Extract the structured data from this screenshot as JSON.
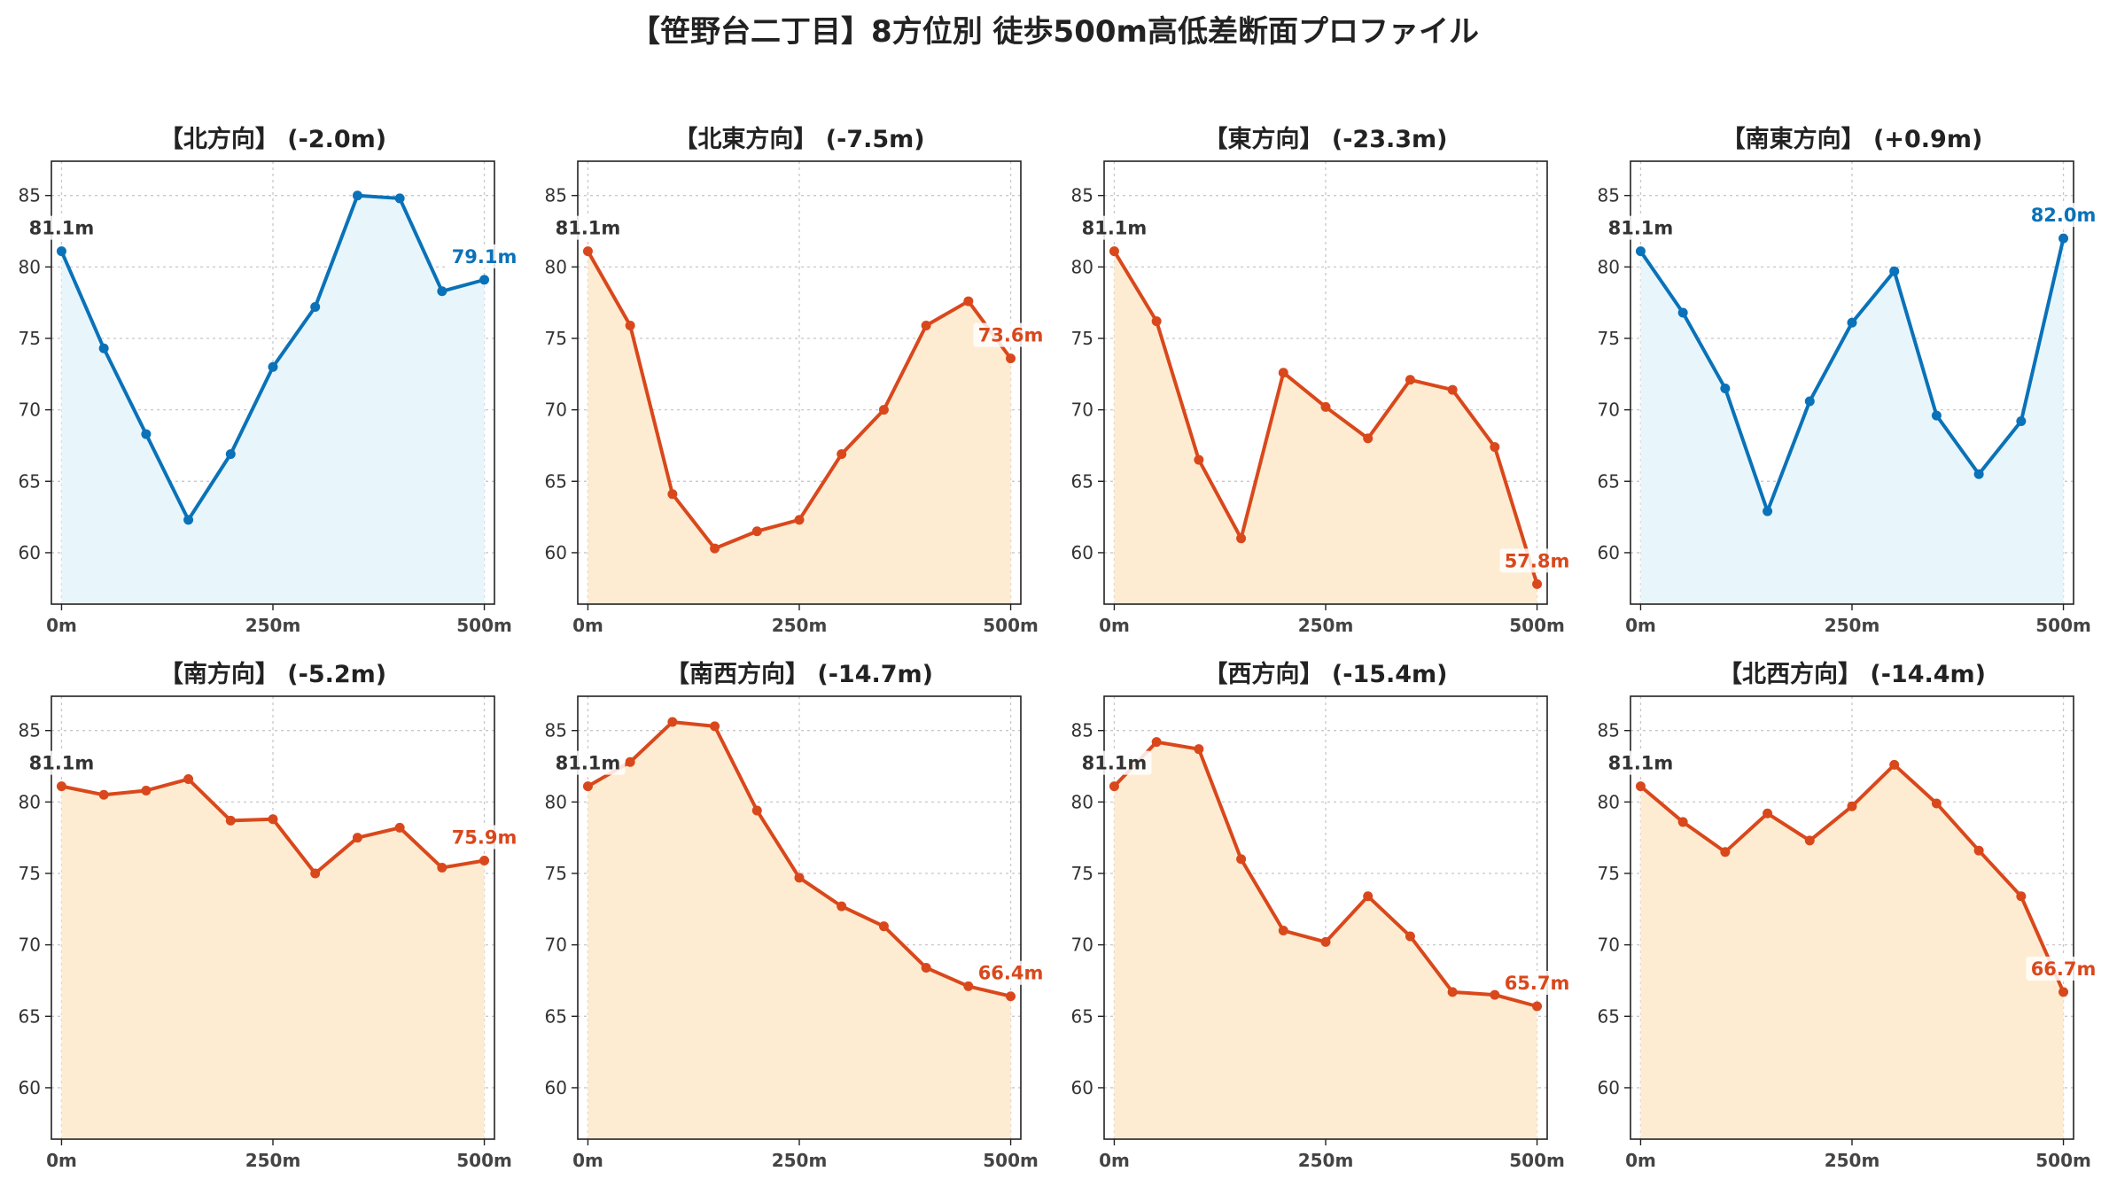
{
  "title": "【笹野台二丁目】8方位別 徒歩500m高低差断面プロファイル",
  "colors": {
    "up": "#0a72b8",
    "up_fill": "#e8f6fc",
    "down": "#d9481c",
    "down_fill": "#feecd2",
    "start_label": "#333333",
    "grid": "#c8c8c8"
  },
  "chart_data": [
    {
      "type": "area",
      "title": "【北方向】 (-2.0m)",
      "trend": "up",
      "x": [
        0,
        50,
        100,
        150,
        200,
        250,
        300,
        350,
        400,
        450,
        500
      ],
      "values": [
        81.1,
        74.3,
        68.3,
        62.3,
        66.9,
        73.0,
        77.2,
        85.0,
        84.8,
        78.3,
        79.1
      ],
      "start_label": "81.1m",
      "end_label": "79.1m",
      "xticks": [
        0,
        250,
        500
      ],
      "xtick_labels": [
        "0m",
        "250m",
        "500m"
      ],
      "yticks": [
        60,
        65,
        70,
        75,
        80,
        85
      ],
      "ylim": [
        56.4,
        87.4
      ],
      "xlim": [
        -12,
        512
      ],
      "grid": true
    },
    {
      "type": "area",
      "title": "【北東方向】 (-7.5m)",
      "trend": "down",
      "x": [
        0,
        50,
        100,
        150,
        200,
        250,
        300,
        350,
        400,
        450,
        500
      ],
      "values": [
        81.1,
        75.9,
        64.1,
        60.3,
        61.5,
        62.3,
        66.9,
        70.0,
        75.9,
        77.6,
        73.6
      ],
      "start_label": "81.1m",
      "end_label": "73.6m",
      "xticks": [
        0,
        250,
        500
      ],
      "xtick_labels": [
        "0m",
        "250m",
        "500m"
      ],
      "yticks": [
        60,
        65,
        70,
        75,
        80,
        85
      ],
      "ylim": [
        56.4,
        87.4
      ],
      "xlim": [
        -12,
        512
      ],
      "grid": true
    },
    {
      "type": "area",
      "title": "【東方向】 (-23.3m)",
      "trend": "down",
      "x": [
        0,
        50,
        100,
        150,
        200,
        250,
        300,
        350,
        400,
        450,
        500
      ],
      "values": [
        81.1,
        76.2,
        66.5,
        61.0,
        72.6,
        70.2,
        68.0,
        72.1,
        71.4,
        67.4,
        57.8
      ],
      "start_label": "81.1m",
      "end_label": "57.8m",
      "xticks": [
        0,
        250,
        500
      ],
      "xtick_labels": [
        "0m",
        "250m",
        "500m"
      ],
      "yticks": [
        60,
        65,
        70,
        75,
        80,
        85
      ],
      "ylim": [
        56.4,
        87.4
      ],
      "xlim": [
        -12,
        512
      ],
      "grid": true
    },
    {
      "type": "area",
      "title": "【南東方向】 (+0.9m)",
      "trend": "up",
      "x": [
        0,
        50,
        100,
        150,
        200,
        250,
        300,
        350,
        400,
        450,
        500
      ],
      "values": [
        81.1,
        76.8,
        71.5,
        62.9,
        70.6,
        76.1,
        79.7,
        69.6,
        65.5,
        69.2,
        82.0
      ],
      "start_label": "81.1m",
      "end_label": "82.0m",
      "xticks": [
        0,
        250,
        500
      ],
      "xtick_labels": [
        "0m",
        "250m",
        "500m"
      ],
      "yticks": [
        60,
        65,
        70,
        75,
        80,
        85
      ],
      "ylim": [
        56.4,
        87.4
      ],
      "xlim": [
        -12,
        512
      ],
      "grid": true
    },
    {
      "type": "area",
      "title": "【南方向】 (-5.2m)",
      "trend": "down",
      "x": [
        0,
        50,
        100,
        150,
        200,
        250,
        300,
        350,
        400,
        450,
        500
      ],
      "values": [
        81.1,
        80.5,
        80.8,
        81.6,
        78.7,
        78.8,
        75.0,
        77.5,
        78.2,
        75.4,
        75.9
      ],
      "start_label": "81.1m",
      "end_label": "75.9m",
      "xticks": [
        0,
        250,
        500
      ],
      "xtick_labels": [
        "0m",
        "250m",
        "500m"
      ],
      "yticks": [
        60,
        65,
        70,
        75,
        80,
        85
      ],
      "ylim": [
        56.4,
        87.4
      ],
      "xlim": [
        -12,
        512
      ],
      "grid": true
    },
    {
      "type": "area",
      "title": "【南西方向】 (-14.7m)",
      "trend": "down",
      "x": [
        0,
        50,
        100,
        150,
        200,
        250,
        300,
        350,
        400,
        450,
        500
      ],
      "values": [
        81.1,
        82.8,
        85.6,
        85.3,
        79.4,
        74.7,
        72.7,
        71.3,
        68.4,
        67.1,
        66.4
      ],
      "start_label": "81.1m",
      "end_label": "66.4m",
      "xticks": [
        0,
        250,
        500
      ],
      "xtick_labels": [
        "0m",
        "250m",
        "500m"
      ],
      "yticks": [
        60,
        65,
        70,
        75,
        80,
        85
      ],
      "ylim": [
        56.4,
        87.4
      ],
      "xlim": [
        -12,
        512
      ],
      "grid": true
    },
    {
      "type": "area",
      "title": "【西方向】 (-15.4m)",
      "trend": "down",
      "x": [
        0,
        50,
        100,
        150,
        200,
        250,
        300,
        350,
        400,
        450,
        500
      ],
      "values": [
        81.1,
        84.2,
        83.7,
        76.0,
        71.0,
        70.2,
        73.4,
        70.6,
        66.7,
        66.5,
        65.7
      ],
      "start_label": "81.1m",
      "end_label": "65.7m",
      "xticks": [
        0,
        250,
        500
      ],
      "xtick_labels": [
        "0m",
        "250m",
        "500m"
      ],
      "yticks": [
        60,
        65,
        70,
        75,
        80,
        85
      ],
      "ylim": [
        56.4,
        87.4
      ],
      "xlim": [
        -12,
        512
      ],
      "grid": true
    },
    {
      "type": "area",
      "title": "【北西方向】 (-14.4m)",
      "trend": "down",
      "x": [
        0,
        50,
        100,
        150,
        200,
        250,
        300,
        350,
        400,
        450,
        500
      ],
      "values": [
        81.1,
        78.6,
        76.5,
        79.2,
        77.3,
        79.7,
        82.6,
        79.9,
        76.6,
        73.4,
        66.7
      ],
      "start_label": "81.1m",
      "end_label": "66.7m",
      "xticks": [
        0,
        250,
        500
      ],
      "xtick_labels": [
        "0m",
        "250m",
        "500m"
      ],
      "yticks": [
        60,
        65,
        70,
        75,
        80,
        85
      ],
      "ylim": [
        56.4,
        87.4
      ],
      "xlim": [
        -12,
        512
      ],
      "grid": true
    }
  ]
}
